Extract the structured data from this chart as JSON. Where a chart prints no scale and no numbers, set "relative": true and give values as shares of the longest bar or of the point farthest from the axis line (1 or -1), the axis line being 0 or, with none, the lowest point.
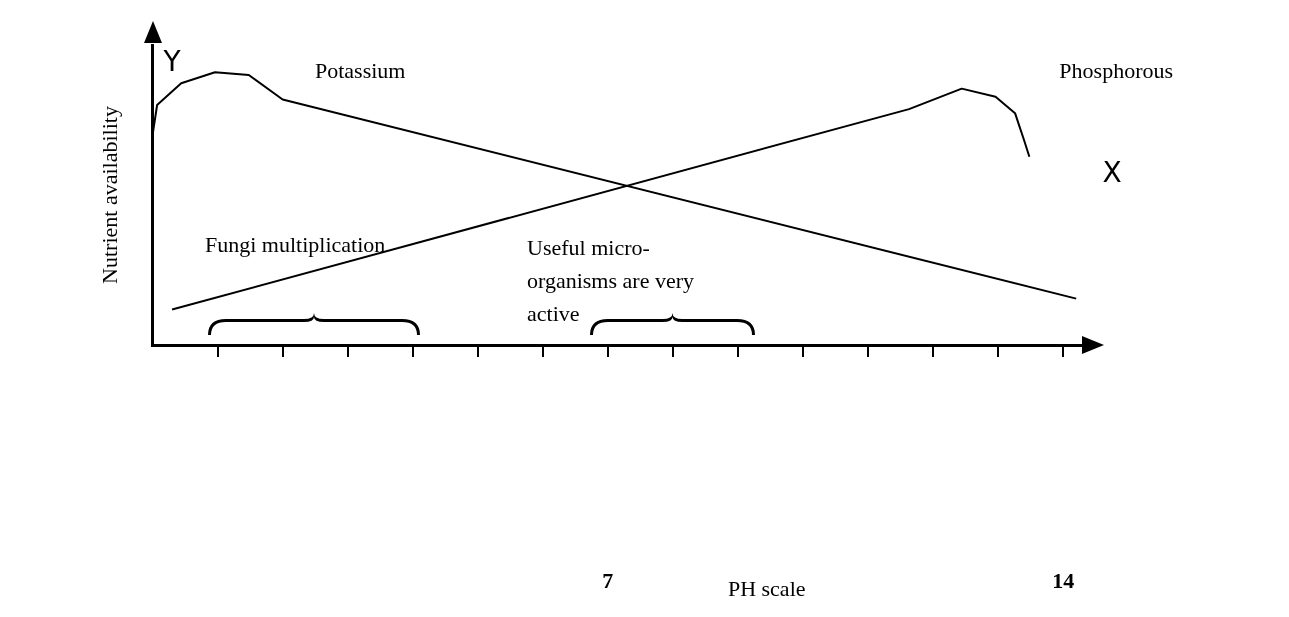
{
  "chart_data": {
    "type": "line",
    "relative": true,
    "xlabel": "PH scale",
    "ylabel": "Nutrient availability",
    "x": [
      0,
      0.07,
      0.44,
      0.96,
      1.48,
      2.0,
      14.2
    ],
    "xlim": [
      0,
      14.3
    ],
    "xticks": [
      {
        "value": 1,
        "label": null
      },
      {
        "value": 2,
        "label": null
      },
      {
        "value": 3,
        "label": null
      },
      {
        "value": 4,
        "label": null
      },
      {
        "value": 5,
        "label": null
      },
      {
        "value": 6,
        "label": null
      },
      7,
      {
        "value": 8,
        "label": null
      },
      {
        "value": 9,
        "label": null
      },
      {
        "value": 10,
        "label": null
      },
      {
        "value": 11,
        "label": null
      },
      {
        "value": 12,
        "label": null
      },
      {
        "value": 13,
        "label": null
      },
      14
    ],
    "series": [
      {
        "name": "Potassium",
        "color": "#000000",
        "values": [
          0.77,
          0.88,
          0.96,
          1.0,
          0.99,
          0.9,
          0.17
        ]
      },
      {
        "name": "Phosphorous",
        "color": "#000000",
        "x": [
          0.3,
          11.63,
          12.44,
          12.96,
          13.26,
          13.4,
          13.48
        ],
        "values": [
          0.13,
          0.865,
          0.94,
          0.91,
          0.85,
          0.75,
          0.69
        ]
      }
    ],
    "annotations": [
      "Y",
      "X",
      "Fungi multiplication",
      "Useful micro-organisms are very active"
    ],
    "legend": false
  }
}
